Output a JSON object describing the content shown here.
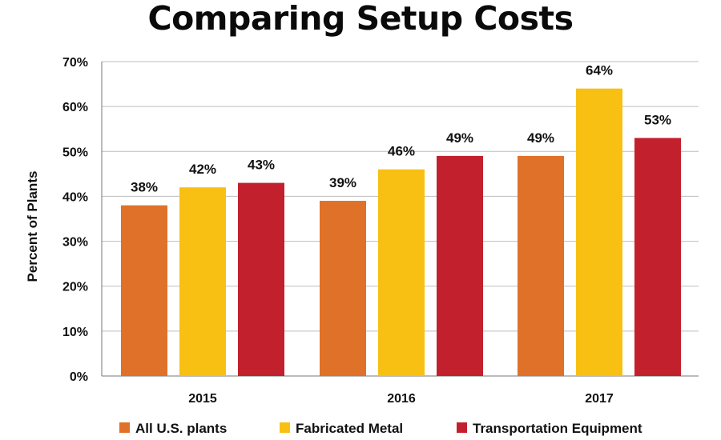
{
  "chart_data": {
    "type": "bar",
    "title": "Comparing Setup Costs",
    "xlabel": "",
    "ylabel": "Percent of Plants",
    "categories": [
      "2015",
      "2016",
      "2017"
    ],
    "series": [
      {
        "name": "All U.S. plants",
        "values": [
          38,
          39,
          49
        ],
        "labels": [
          "38%",
          "39%",
          "49%"
        ],
        "color": "#e07128"
      },
      {
        "name": "Fabricated Metal",
        "values": [
          42,
          46,
          64
        ],
        "labels": [
          "42%",
          "46%",
          "64%"
        ],
        "color": "#f8c012"
      },
      {
        "name": "Transportation Equipment",
        "values": [
          43,
          49,
          53
        ],
        "labels": [
          "43%",
          "49%",
          "53%"
        ],
        "color": "#c2202d"
      }
    ],
    "ylim": [
      0,
      70
    ],
    "yticks": [
      0,
      10,
      20,
      30,
      40,
      50,
      60,
      70
    ],
    "ytick_labels": [
      "0%",
      "10%",
      "20%",
      "30%",
      "40%",
      "50%",
      "60%",
      "70%"
    ],
    "grid": true,
    "legend_position": "bottom"
  },
  "colors": {
    "grid": "#bdbdbd",
    "axis": "#777777"
  }
}
